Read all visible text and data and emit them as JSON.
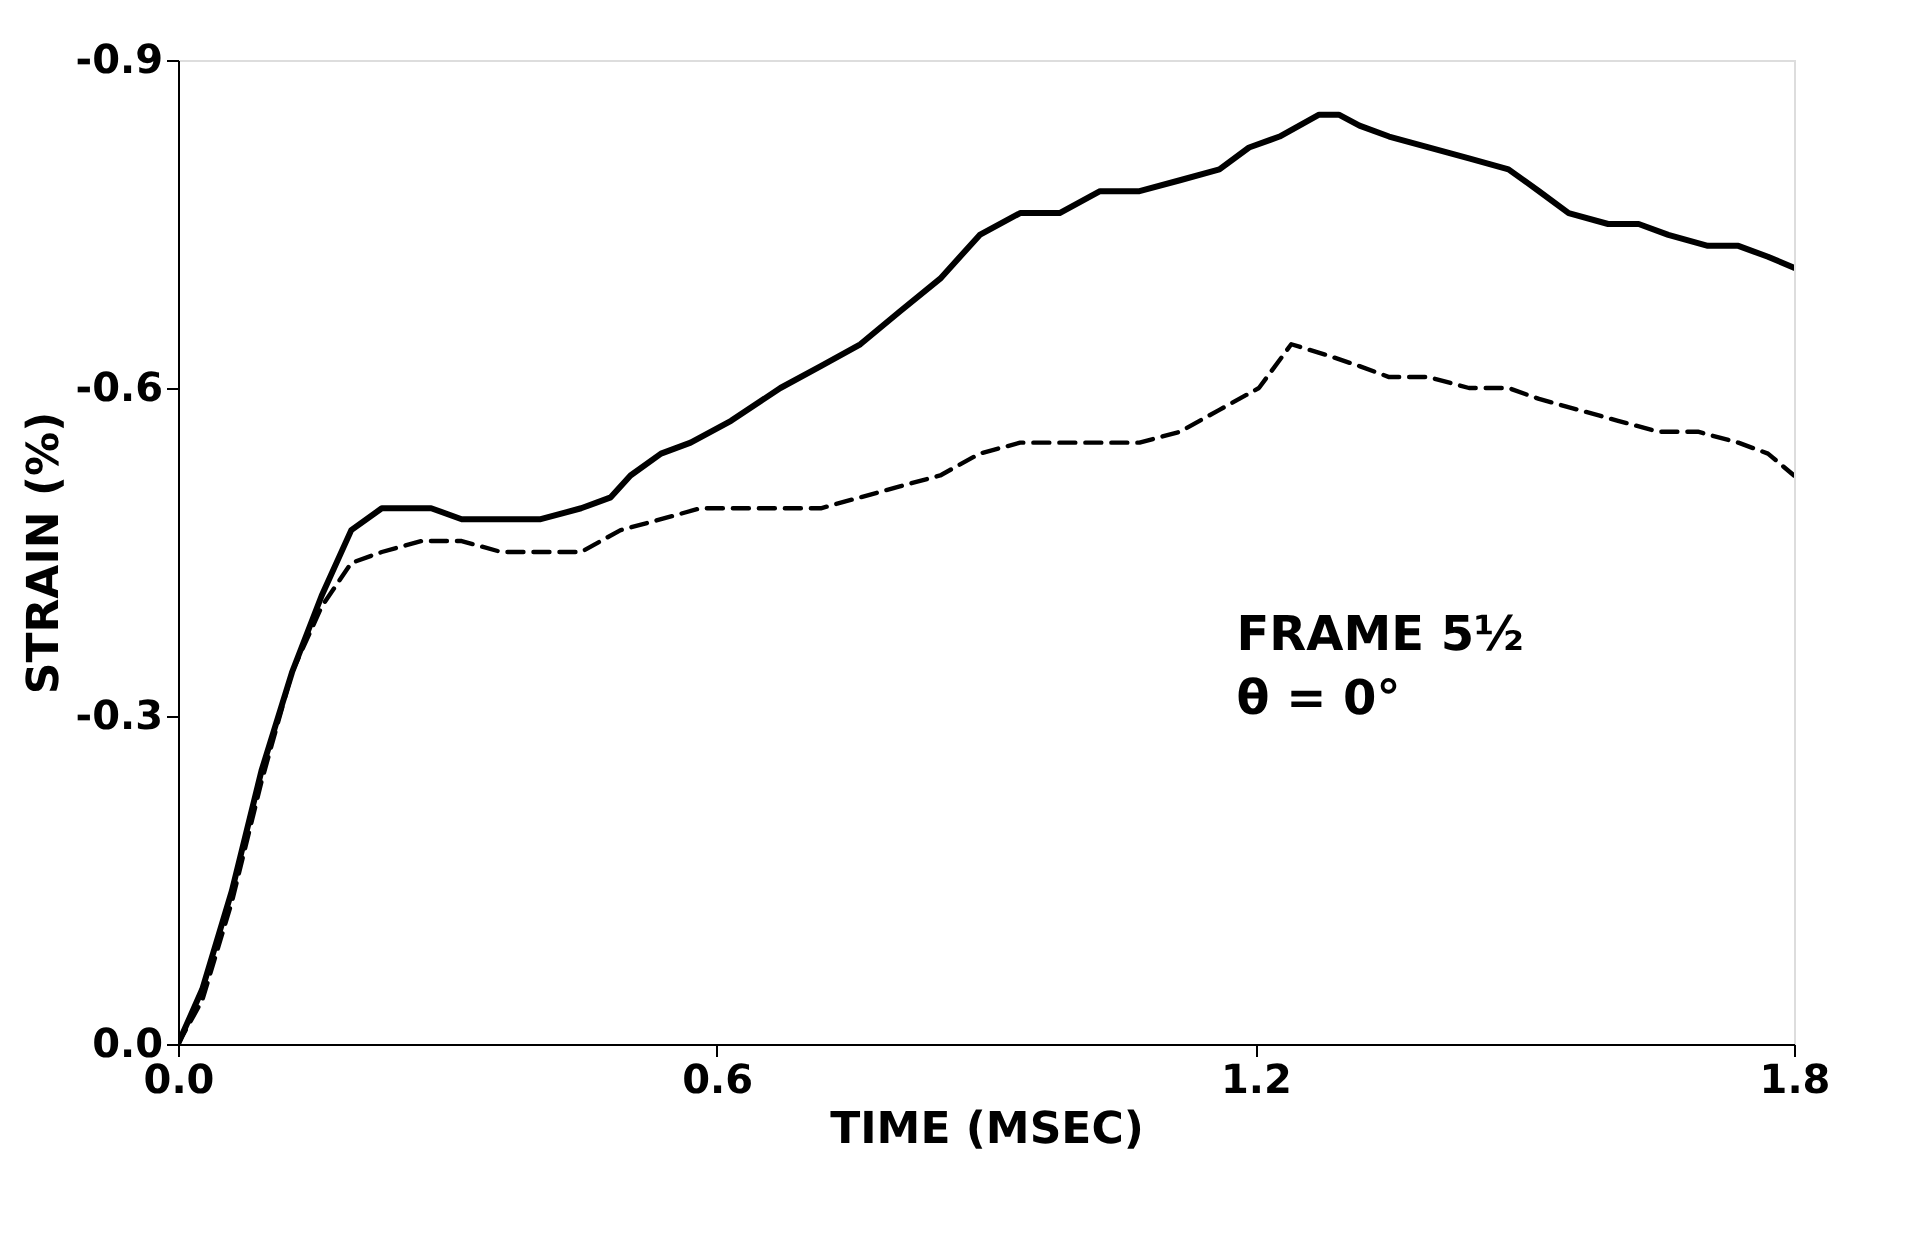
{
  "chart_data": {
    "type": "line",
    "xlabel": "TIME (MSEC)",
    "ylabel": "STRAIN (%)",
    "xlim": [
      0,
      1.8
    ],
    "ylim": [
      0,
      -0.9
    ],
    "xticks": [
      {
        "value": 0,
        "label": "0.0"
      },
      {
        "value": 0.6,
        "label": "0.6"
      },
      {
        "value": 1.2,
        "label": "1.2"
      },
      {
        "value": 1.8,
        "label": "1.8"
      }
    ],
    "yticks": [
      {
        "value": 0,
        "label": "0.0"
      },
      {
        "value": -0.3,
        "label": "-0.3"
      },
      {
        "value": -0.6,
        "label": "-0.6"
      },
      {
        "value": -0.9,
        "label": "-0.9"
      }
    ],
    "grid": false,
    "marker": "none",
    "annotations": [
      "FRAME 5½",
      "θ = 0°"
    ],
    "series": [
      {
        "color": "#000000",
        "line_style": "solid",
        "x": [
          0,
          0.027,
          0.06,
          0.093,
          0.127,
          0.16,
          0.193,
          0.227,
          0.249,
          0.282,
          0.316,
          0.36,
          0.404,
          0.449,
          0.482,
          0.504,
          0.538,
          0.571,
          0.616,
          0.671,
          0.716,
          0.76,
          0.804,
          0.849,
          0.893,
          0.938,
          0.982,
          1.027,
          1.071,
          1.116,
          1.16,
          1.193,
          1.227,
          1.271,
          1.293,
          1.316,
          1.349,
          1.393,
          1.438,
          1.482,
          1.516,
          1.549,
          1.593,
          1.627,
          1.66,
          1.704,
          1.738,
          1.771,
          1.8
        ],
        "values": [
          0,
          -0.05,
          -0.14,
          -0.25,
          -0.34,
          -0.41,
          -0.47,
          -0.49,
          -0.49,
          -0.49,
          -0.48,
          -0.48,
          -0.48,
          -0.49,
          -0.5,
          -0.52,
          -0.54,
          -0.55,
          -0.57,
          -0.6,
          -0.62,
          -0.64,
          -0.67,
          -0.7,
          -0.74,
          -0.76,
          -0.76,
          -0.78,
          -0.78,
          -0.79,
          -0.8,
          -0.82,
          -0.83,
          -0.85,
          -0.85,
          -0.84,
          -0.83,
          -0.82,
          -0.81,
          -0.8,
          -0.78,
          -0.76,
          -0.75,
          -0.75,
          -0.74,
          -0.73,
          -0.73,
          -0.72,
          -0.71
        ]
      },
      {
        "color": "#000000",
        "line_style": "dashed",
        "x": [
          0,
          0.027,
          0.06,
          0.093,
          0.127,
          0.16,
          0.193,
          0.227,
          0.271,
          0.316,
          0.36,
          0.404,
          0.449,
          0.493,
          0.538,
          0.582,
          0.627,
          0.671,
          0.716,
          0.76,
          0.804,
          0.849,
          0.893,
          0.938,
          0.982,
          1.027,
          1.071,
          1.116,
          1.16,
          1.204,
          1.24,
          1.28,
          1.316,
          1.349,
          1.393,
          1.438,
          1.482,
          1.516,
          1.56,
          1.604,
          1.649,
          1.693,
          1.738,
          1.771,
          1.8
        ],
        "values": [
          0,
          -0.04,
          -0.13,
          -0.24,
          -0.34,
          -0.4,
          -0.44,
          -0.45,
          -0.46,
          -0.46,
          -0.45,
          -0.45,
          -0.45,
          -0.47,
          -0.48,
          -0.49,
          -0.49,
          -0.49,
          -0.49,
          -0.5,
          -0.51,
          -0.52,
          -0.54,
          -0.55,
          -0.55,
          -0.55,
          -0.55,
          -0.56,
          -0.58,
          -0.6,
          -0.64,
          -0.63,
          -0.62,
          -0.61,
          -0.61,
          -0.6,
          -0.6,
          -0.59,
          -0.58,
          -0.57,
          -0.56,
          -0.56,
          -0.55,
          -0.54,
          -0.52
        ]
      }
    ]
  }
}
